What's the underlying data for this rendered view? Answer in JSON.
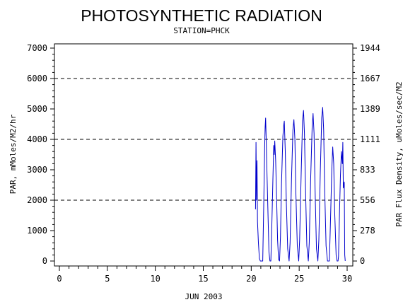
{
  "chart_data": {
    "type": "line",
    "title": "PHOTOSYNTHETIC RADIATION",
    "subtitle": "STATION=PHCK",
    "xlabel": "JUN 2003",
    "ylabel": "PAR, mMoles/M2/hr",
    "y2label": "PAR Flux Density, uMoles/sec/M2",
    "xlim": [
      0,
      30
    ],
    "ylim": [
      0,
      7000
    ],
    "x_ticks": [
      "0",
      "5",
      "10",
      "15",
      "20",
      "25",
      "30"
    ],
    "y_ticks": [
      "0",
      "1000",
      "2000",
      "3000",
      "4000",
      "5000",
      "6000",
      "7000"
    ],
    "y2_ticks": [
      "0",
      "278",
      "556",
      "833",
      "1111",
      "1389",
      "1667",
      "1944"
    ],
    "gridlines_y": [
      2000,
      4000,
      6000
    ],
    "line_color": "#0000cc",
    "series": [
      {
        "values": [
          [
            20.45,
            1700
          ],
          [
            20.5,
            3900
          ],
          [
            20.55,
            2000
          ],
          [
            20.6,
            3300
          ],
          [
            20.65,
            1300
          ],
          [
            20.75,
            600
          ],
          [
            20.85,
            80
          ],
          [
            20.95,
            0
          ],
          [
            21.1,
            0
          ],
          [
            21.2,
            0
          ],
          [
            21.3,
            1800
          ],
          [
            21.4,
            3700
          ],
          [
            21.45,
            4400
          ],
          [
            21.5,
            4700
          ],
          [
            21.55,
            4100
          ],
          [
            21.65,
            2800
          ],
          [
            21.75,
            1500
          ],
          [
            21.85,
            300
          ],
          [
            21.95,
            0
          ],
          [
            22.05,
            0
          ],
          [
            22.15,
            1200
          ],
          [
            22.25,
            2600
          ],
          [
            22.35,
            3800
          ],
          [
            22.4,
            3500
          ],
          [
            22.45,
            3950
          ],
          [
            22.55,
            3300
          ],
          [
            22.65,
            2000
          ],
          [
            22.75,
            700
          ],
          [
            22.85,
            50
          ],
          [
            22.95,
            0
          ],
          [
            23.05,
            800
          ],
          [
            23.15,
            2500
          ],
          [
            23.3,
            4100
          ],
          [
            23.4,
            4500
          ],
          [
            23.45,
            4600
          ],
          [
            23.55,
            3600
          ],
          [
            23.65,
            2000
          ],
          [
            23.8,
            400
          ],
          [
            23.95,
            0
          ],
          [
            24.05,
            600
          ],
          [
            24.2,
            2700
          ],
          [
            24.35,
            4300
          ],
          [
            24.45,
            4650
          ],
          [
            24.55,
            4000
          ],
          [
            24.65,
            2300
          ],
          [
            24.8,
            500
          ],
          [
            24.95,
            0
          ],
          [
            25.05,
            700
          ],
          [
            25.2,
            2800
          ],
          [
            25.35,
            4600
          ],
          [
            25.45,
            4950
          ],
          [
            25.55,
            4200
          ],
          [
            25.65,
            2500
          ],
          [
            25.8,
            500
          ],
          [
            25.95,
            0
          ],
          [
            26.05,
            600
          ],
          [
            26.2,
            2700
          ],
          [
            26.35,
            4400
          ],
          [
            26.45,
            4850
          ],
          [
            26.55,
            4200
          ],
          [
            26.65,
            2400
          ],
          [
            26.8,
            400
          ],
          [
            26.95,
            0
          ],
          [
            27.05,
            700
          ],
          [
            27.2,
            2900
          ],
          [
            27.35,
            4700
          ],
          [
            27.45,
            5050
          ],
          [
            27.55,
            4300
          ],
          [
            27.65,
            2500
          ],
          [
            27.8,
            500
          ],
          [
            27.95,
            0
          ],
          [
            28.05,
            0
          ],
          [
            28.15,
            0
          ],
          [
            28.25,
            1200
          ],
          [
            28.4,
            3000
          ],
          [
            28.5,
            3750
          ],
          [
            28.6,
            3200
          ],
          [
            28.7,
            1600
          ],
          [
            28.85,
            200
          ],
          [
            28.95,
            0
          ],
          [
            29.05,
            0
          ],
          [
            29.1,
            150
          ],
          [
            29.2,
            1500
          ],
          [
            29.3,
            2800
          ],
          [
            29.4,
            3600
          ],
          [
            29.5,
            3200
          ],
          [
            29.55,
            3900
          ],
          [
            29.6,
            2400
          ],
          [
            29.7,
            2600
          ],
          [
            29.75,
            200
          ],
          [
            29.8,
            0
          ]
        ]
      }
    ]
  }
}
